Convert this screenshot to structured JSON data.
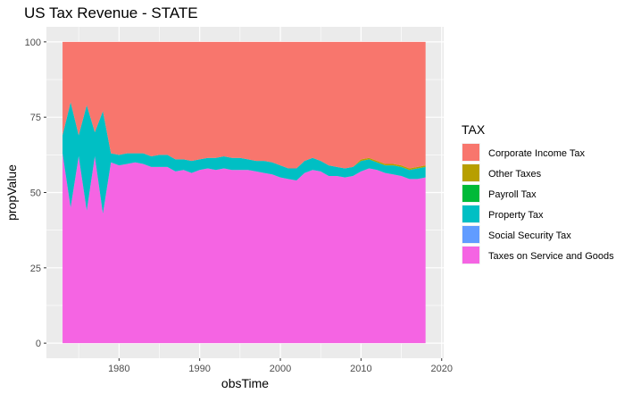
{
  "chart_data": {
    "type": "area",
    "stacked": true,
    "title": "US Tax Revenue - STATE",
    "xlabel": "obsTime",
    "ylabel": "propValue",
    "xlim": [
      1973,
      2018
    ],
    "ylim": [
      0,
      100
    ],
    "x_ticks": [
      1980,
      1990,
      2000,
      2010,
      2020
    ],
    "y_ticks": [
      0,
      25,
      50,
      75,
      100
    ],
    "grid": true,
    "legend": {
      "title": "TAX",
      "position": "right",
      "entries": [
        {
          "name": "Corporate Income Tax",
          "color": "#F8766D"
        },
        {
          "name": "Other Taxes",
          "color": "#B79F00"
        },
        {
          "name": "Payroll Tax",
          "color": "#00BA38"
        },
        {
          "name": "Property Tax",
          "color": "#00BFC4"
        },
        {
          "name": "Social Security Tax",
          "color": "#619CFF"
        },
        {
          "name": "Taxes on Service and Goods",
          "color": "#F564E3"
        }
      ]
    },
    "x": [
      1973,
      1974,
      1975,
      1976,
      1977,
      1978,
      1979,
      1980,
      1981,
      1982,
      1983,
      1984,
      1985,
      1986,
      1987,
      1988,
      1989,
      1990,
      1991,
      1992,
      1993,
      1994,
      1995,
      1996,
      1997,
      1998,
      1999,
      2000,
      2001,
      2002,
      2003,
      2004,
      2005,
      2006,
      2007,
      2008,
      2009,
      2010,
      2011,
      2012,
      2013,
      2014,
      2015,
      2016,
      2017,
      2018
    ],
    "series": [
      {
        "name": "Taxes on Service and Goods",
        "color": "#F564E3",
        "values": [
          63,
          45,
          62,
          44,
          62,
          43,
          60,
          59,
          59.5,
          60,
          59.5,
          58.5,
          58.5,
          58.5,
          57,
          57.5,
          56.5,
          57.5,
          58,
          57.5,
          58,
          57.5,
          57.5,
          57.5,
          57,
          56.5,
          56,
          55,
          54.5,
          54,
          56.5,
          57.5,
          57,
          55.5,
          55.5,
          55,
          55.5,
          57,
          58,
          57.5,
          56.5,
          56,
          55.5,
          54.5,
          54.5,
          55
        ]
      },
      {
        "name": "Social Security Tax",
        "color": "#619CFF",
        "values": [
          0,
          0,
          0,
          0,
          0,
          0,
          0,
          0,
          0,
          0,
          0,
          0,
          0,
          0,
          0,
          0,
          0,
          0,
          0,
          0,
          0,
          0,
          0,
          0,
          0,
          0,
          0,
          0,
          0,
          0,
          0,
          0,
          0,
          0,
          0,
          0,
          0,
          0,
          0,
          0,
          0,
          0,
          0,
          0,
          0,
          0
        ]
      },
      {
        "name": "Property Tax",
        "color": "#00BFC4",
        "values": [
          6,
          35,
          7,
          35,
          8,
          34,
          3,
          3.5,
          3.5,
          3,
          3.5,
          3.5,
          4,
          4,
          4,
          3.5,
          4,
          3.5,
          3.5,
          4,
          4,
          4,
          4,
          3.5,
          3.5,
          4,
          4,
          4,
          3.5,
          4,
          4,
          4,
          3.5,
          3.5,
          3,
          3,
          3,
          3.5,
          3,
          2.5,
          2.5,
          3,
          3,
          3,
          3.5,
          3.5
        ]
      },
      {
        "name": "Payroll Tax",
        "color": "#00BA38",
        "values": [
          0,
          0,
          0,
          0,
          0,
          0,
          0,
          0,
          0,
          0,
          0,
          0,
          0,
          0,
          0,
          0,
          0,
          0,
          0,
          0,
          0,
          0,
          0,
          0,
          0,
          0,
          0,
          0,
          0,
          0,
          0,
          0,
          0,
          0,
          0,
          0,
          0,
          0,
          0,
          0,
          0,
          0,
          0,
          0,
          0,
          0
        ]
      },
      {
        "name": "Other Taxes",
        "color": "#B79F00",
        "values": [
          0,
          0,
          0,
          0,
          0,
          0,
          0,
          0,
          0,
          0,
          0,
          0,
          0,
          0,
          0,
          0,
          0,
          0,
          0,
          0,
          0,
          0,
          0,
          0,
          0,
          0,
          0,
          0,
          0,
          0,
          0,
          0,
          0,
          0,
          0,
          0,
          0,
          0.5,
          0.5,
          0.5,
          0.5,
          0.5,
          0.5,
          0.5,
          0.5,
          0.5
        ]
      },
      {
        "name": "Corporate Income Tax",
        "color": "#F8766D",
        "values": [
          31,
          20,
          31,
          21,
          30,
          23,
          37,
          37.5,
          37,
          37,
          37,
          38,
          37.5,
          37.5,
          39,
          39,
          39.5,
          39,
          38.5,
          38.5,
          38,
          38.5,
          38.5,
          39,
          39.5,
          39.5,
          40,
          41,
          42,
          42,
          39.5,
          38.5,
          39.5,
          41,
          41.5,
          42,
          41.5,
          39,
          38.5,
          39.5,
          40.5,
          40.5,
          41,
          42,
          41.5,
          41
        ]
      }
    ]
  }
}
